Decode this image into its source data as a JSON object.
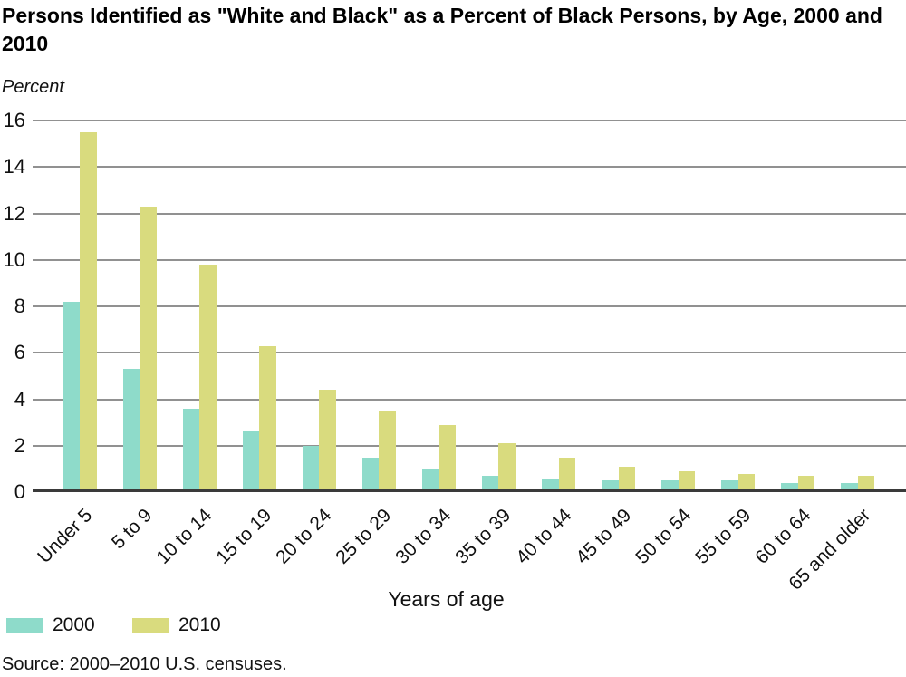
{
  "source": "Source: 2000–2010 U.S. censuses.",
  "colors": {
    "series_2000": "#8edbca",
    "series_2010": "#d9db7e",
    "gridline": "#919191",
    "axis_line": "#3a3a3a",
    "text": "#000000",
    "background": "#ffffff"
  },
  "chart_data": {
    "type": "bar",
    "title": "Persons Identified as \"White and Black\" as a Percent of Black Persons, by Age, 2000 and 2010",
    "categories": [
      "Under 5",
      "5 to 9",
      "10 to 14",
      "15 to 19",
      "20 to 24",
      "25 to 29",
      "30 to 34",
      "35 to 39",
      "40 to 44",
      "45 to 49",
      "50 to 54",
      "55 to 59",
      "60 to 64",
      "65 and older"
    ],
    "series": [
      {
        "name": "2000",
        "color": "#8edbca",
        "values": [
          8.2,
          5.3,
          3.6,
          2.6,
          2.0,
          1.5,
          1.0,
          0.7,
          0.6,
          0.5,
          0.5,
          0.5,
          0.4,
          0.4
        ]
      },
      {
        "name": "2010",
        "color": "#d9db7e",
        "values": [
          15.5,
          12.3,
          9.8,
          6.3,
          4.4,
          3.5,
          2.9,
          2.1,
          1.5,
          1.1,
          0.9,
          0.8,
          0.7,
          0.7
        ]
      }
    ],
    "xlabel": "Years of age",
    "ylabel": "Percent",
    "ylim": [
      0,
      16
    ],
    "ytick_step": 2,
    "yticks": [
      0,
      2,
      4,
      6,
      8,
      10,
      12,
      14,
      16
    ],
    "grid": true,
    "legend_position": "bottom-left"
  }
}
